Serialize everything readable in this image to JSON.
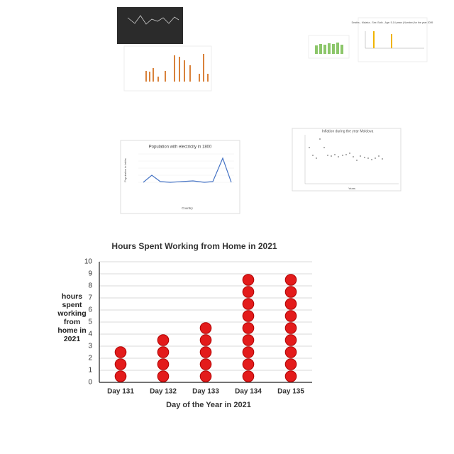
{
  "thumbnails": {
    "population": {
      "title": "Population with electricity in 1800",
      "ylabel": "Population in lakhs",
      "xlabel": "Country"
    },
    "inflation": {
      "title": "Inflation during the year Moldova",
      "xlabel": "Years"
    },
    "malaria": {
      "title": "Deaths - Malaria - Sex: Both - Age: 5-14 years (Number) for the year 2005"
    }
  },
  "chart_data": {
    "type": "dot",
    "title": "Hours Spent Working from Home in 2021",
    "xlabel": "Day of the Year in 2021",
    "ylabel": "hours spent working from home in 2021",
    "categories": [
      "Day 131",
      "Day 132",
      "Day 133",
      "Day 134",
      "Day 135"
    ],
    "values": [
      3,
      4,
      5,
      9,
      9
    ],
    "color": "#e31b1b",
    "ylim": [
      0,
      10
    ],
    "yticks": [
      0,
      1,
      2,
      3,
      4,
      5,
      6,
      7,
      8,
      9,
      10
    ],
    "grid": true
  }
}
